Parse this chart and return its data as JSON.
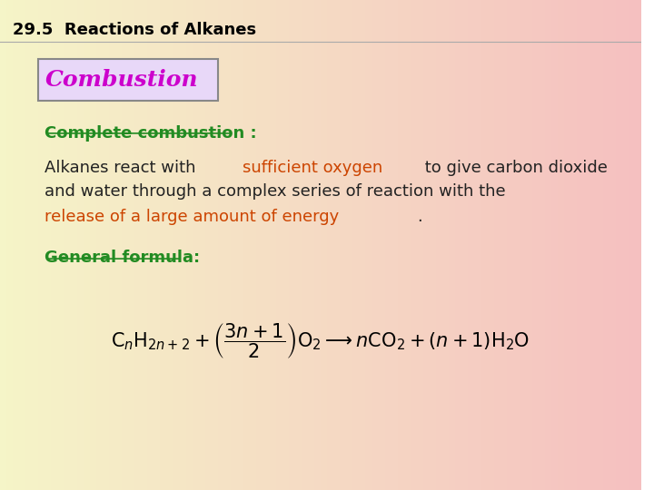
{
  "title": "29.5  Reactions of Alkanes",
  "title_color": "#000000",
  "title_fontsize": 13,
  "bg_color_left": "#f5f5c8",
  "bg_color_right": "#f5c0c0",
  "combustion_box_text": "Combustion",
  "combustion_box_color": "#cc00cc",
  "combustion_box_bg": "#e8d8f8",
  "combustion_box_border": "#888888",
  "complete_combustion_text": "Complete combustion :",
  "complete_combustion_color": "#228B22",
  "para_line1_black1": "Alkanes react with ",
  "para_line1_orange": "sufficient oxygen",
  "para_line1_orange_color": "#cc4400",
  "para_line1_black2": " to give carbon dioxide",
  "para_line2": "and water through a complex series of reaction with the",
  "para_line3_orange": "release of a large amount of energy",
  "para_line3_orange_color": "#cc4400",
  "para_line3_dot": ".",
  "para_color_black": "#222222",
  "general_formula_text": "General formula:",
  "general_formula_color": "#228B22",
  "formula_color": "#000000",
  "font_size_body": 13,
  "font_size_formula": 15
}
